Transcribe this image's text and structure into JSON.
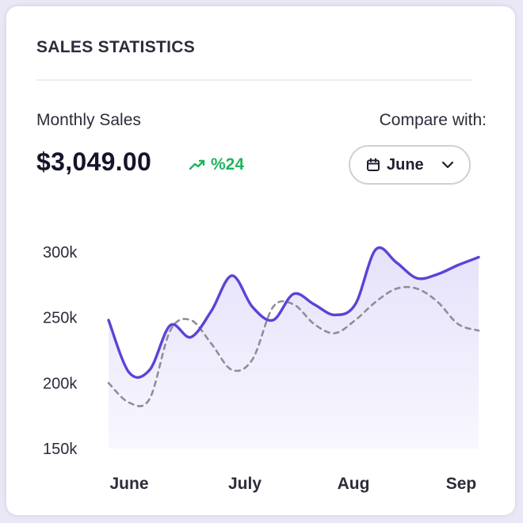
{
  "header": {
    "title": "SALES STATISTICS"
  },
  "metric": {
    "label": "Monthly Sales",
    "value": "$3,049.00",
    "change": "%24",
    "change_color": "#22b35e"
  },
  "compare": {
    "label": "Compare with:",
    "selected": "June",
    "icon": "calendar-icon"
  },
  "colors": {
    "primary_line": "#5b43d6",
    "comparison_line": "#8e8e98",
    "area_fill": "#ede9fb"
  },
  "chart_data": {
    "type": "line",
    "x": [
      "Jun",
      "",
      "",
      "",
      "",
      "",
      "Jul",
      "",
      "",
      "",
      "",
      "",
      "Aug",
      "",
      "",
      "",
      "",
      "",
      "Sep"
    ],
    "x_tick_labels": [
      "June",
      "July",
      "Aug",
      "Sep"
    ],
    "y_tick_labels": [
      "300k",
      "250k",
      "200k",
      "150k"
    ],
    "ylim": [
      150,
      300
    ],
    "series": [
      {
        "style": "solid-area",
        "values": [
          248,
          208,
          210,
          244,
          235,
          255,
          282,
          258,
          248,
          268,
          260,
          252,
          260,
          302,
          292,
          280,
          283,
          290,
          296
        ]
      },
      {
        "style": "dashed",
        "values": [
          200,
          185,
          188,
          240,
          248,
          230,
          210,
          218,
          258,
          260,
          245,
          238,
          248,
          262,
          272,
          272,
          262,
          245,
          240
        ]
      }
    ],
    "grid": false,
    "legend": "none"
  }
}
